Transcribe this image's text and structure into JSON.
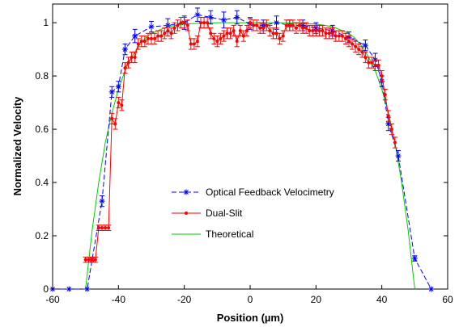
{
  "chart_data": {
    "type": "line",
    "title": "",
    "xlabel": "Position (µm)",
    "ylabel": "Normalized Velocity",
    "xlim": [
      -60,
      60
    ],
    "ylim": [
      0,
      1.07
    ],
    "xticks": [
      -60,
      -40,
      -20,
      0,
      20,
      40,
      60
    ],
    "yticks": [
      0,
      0.2,
      0.4,
      0.6,
      0.8,
      1
    ],
    "xtick_labels": [
      "-60",
      "-40",
      "-20",
      "0",
      "20",
      "40",
      "60"
    ],
    "ytick_labels": [
      "0",
      "0.2",
      "0.4",
      "0.6",
      "0.8",
      "1"
    ],
    "grid": false,
    "legend_position": "center-left",
    "series": [
      {
        "name": "Optical Feedback Velocimetry",
        "color": "#0000ff",
        "line_style": "dashed",
        "marker": "asterisk",
        "error_bars": true,
        "x": [
          -60,
          -55,
          -49.5,
          -48,
          -45,
          -42,
          -40,
          -38,
          -35,
          -30,
          -25,
          -20,
          -16,
          -12,
          -8,
          -4,
          0,
          4,
          8,
          12,
          16,
          20,
          25,
          30,
          35,
          38,
          40,
          42,
          45,
          50,
          55
        ],
        "y": [
          0,
          0,
          0,
          0.11,
          0.33,
          0.74,
          0.76,
          0.9,
          0.95,
          0.985,
          0.99,
          1.0,
          1.03,
          1.02,
          1.01,
          1.02,
          0.995,
          0.99,
          1.0,
          0.99,
          0.99,
          0.98,
          0.97,
          0.945,
          0.915,
          0.86,
          0.78,
          0.62,
          0.5,
          0.115,
          0
        ],
        "err": [
          0,
          0,
          0,
          0.01,
          0.02,
          0.02,
          0.02,
          0.02,
          0.025,
          0.02,
          0.025,
          0.025,
          0.025,
          0.025,
          0.03,
          0.025,
          0.02,
          0.02,
          0.025,
          0.02,
          0.02,
          0.02,
          0.02,
          0.02,
          0.02,
          0.025,
          0.02,
          0.025,
          0.02,
          0.01,
          0
        ]
      },
      {
        "name": "Dual-Slit",
        "color": "#ff0000",
        "line_style": "solid",
        "marker": "dot",
        "error_bars": true,
        "x": [
          -50,
          -49,
          -48,
          -47,
          -46,
          -45,
          -44,
          -43,
          -42,
          -41,
          -40,
          -39,
          -38,
          -37,
          -36,
          -35,
          -34,
          -33,
          -32,
          -31,
          -30,
          -29,
          -28,
          -27,
          -26,
          -25,
          -24,
          -23,
          -22,
          -21,
          -20,
          -19,
          -18,
          -17,
          -16,
          -15,
          -14,
          -13,
          -12,
          -11,
          -10,
          -9,
          -8,
          -7,
          -6,
          -5,
          -4,
          -3,
          -2,
          -1,
          0,
          1,
          2,
          3,
          4,
          5,
          6,
          7,
          8,
          9,
          10,
          11,
          12,
          13,
          14,
          15,
          16,
          17,
          18,
          19,
          20,
          21,
          22,
          23,
          24,
          25,
          26,
          27,
          28,
          29,
          30,
          31,
          32,
          33,
          34,
          35,
          36,
          37,
          38,
          39,
          40,
          41,
          42,
          43,
          44
        ],
        "y": [
          0.11,
          0.11,
          0.11,
          0.11,
          0.23,
          0.23,
          0.23,
          0.23,
          0.64,
          0.62,
          0.7,
          0.69,
          0.83,
          0.85,
          0.87,
          0.87,
          0.92,
          0.93,
          0.93,
          0.94,
          0.94,
          0.94,
          0.95,
          0.95,
          0.96,
          0.97,
          0.96,
          0.98,
          0.99,
          1.0,
          1.0,
          0.99,
          0.92,
          0.92,
          0.93,
          1.0,
          1.0,
          1.0,
          0.96,
          0.94,
          0.93,
          0.94,
          0.95,
          0.96,
          0.96,
          0.97,
          0.93,
          0.97,
          0.95,
          0.97,
          1.0,
          0.99,
          0.99,
          0.98,
          0.98,
          0.99,
          0.97,
          0.96,
          0.96,
          0.94,
          0.95,
          0.99,
          0.99,
          0.99,
          0.98,
          0.99,
          0.98,
          0.98,
          0.97,
          0.97,
          0.97,
          0.97,
          0.97,
          0.96,
          0.96,
          0.96,
          0.95,
          0.95,
          0.95,
          0.94,
          0.93,
          0.92,
          0.91,
          0.9,
          0.89,
          0.87,
          0.85,
          0.85,
          0.84,
          0.84,
          0.8,
          0.73,
          0.65,
          0.6,
          0.55
        ],
        "err": [
          0.01,
          0.01,
          0.01,
          0.01,
          0.01,
          0.01,
          0.01,
          0.01,
          0.02,
          0.02,
          0.02,
          0.02,
          0.02,
          0.02,
          0.02,
          0.02,
          0.02,
          0.02,
          0.02,
          0.02,
          0.02,
          0.02,
          0.02,
          0.02,
          0.02,
          0.02,
          0.02,
          0.02,
          0.02,
          0.02,
          0.02,
          0.02,
          0.02,
          0.02,
          0.02,
          0.02,
          0.02,
          0.02,
          0.02,
          0.02,
          0.02,
          0.02,
          0.02,
          0.02,
          0.02,
          0.02,
          0.02,
          0.02,
          0.02,
          0.02,
          0.02,
          0.02,
          0.02,
          0.02,
          0.02,
          0.02,
          0.02,
          0.02,
          0.02,
          0.02,
          0.02,
          0.02,
          0.02,
          0.02,
          0.02,
          0.02,
          0.02,
          0.02,
          0.02,
          0.02,
          0.02,
          0.02,
          0.02,
          0.02,
          0.02,
          0.02,
          0.02,
          0.02,
          0.02,
          0.02,
          0.02,
          0.02,
          0.02,
          0.02,
          0.02,
          0.02,
          0.02,
          0.02,
          0.02,
          0.02,
          0.02,
          0.02,
          0.02,
          0.02,
          0.02
        ]
      },
      {
        "name": "Theoretical",
        "color": "#00cc00",
        "line_style": "solid",
        "marker": "none",
        "error_bars": false,
        "x": [
          -50,
          -48,
          -46,
          -44,
          -42,
          -40,
          -38,
          -36,
          -34,
          -32,
          -30,
          -25,
          -20,
          -15,
          -10,
          -5,
          0,
          5,
          10,
          15,
          20,
          25,
          30,
          32,
          34,
          36,
          38,
          40,
          42,
          44,
          46,
          48,
          50
        ],
        "y": [
          0,
          0.22,
          0.4,
          0.55,
          0.66,
          0.75,
          0.82,
          0.87,
          0.91,
          0.94,
          0.96,
          0.985,
          0.995,
          0.998,
          1.0,
          1.0,
          1.0,
          1.0,
          1.0,
          0.998,
          0.995,
          0.985,
          0.96,
          0.94,
          0.91,
          0.87,
          0.82,
          0.75,
          0.66,
          0.55,
          0.4,
          0.22,
          0
        ]
      }
    ]
  }
}
